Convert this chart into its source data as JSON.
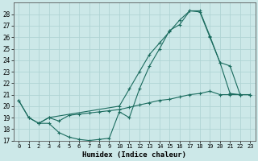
{
  "title": "",
  "xlabel": "Humidex (Indice chaleur)",
  "xlim": [
    -0.5,
    23.5
  ],
  "ylim": [
    17,
    29
  ],
  "yticks": [
    17,
    18,
    19,
    20,
    21,
    22,
    23,
    24,
    25,
    26,
    27,
    28
  ],
  "xticks": [
    0,
    1,
    2,
    3,
    4,
    5,
    6,
    7,
    8,
    9,
    10,
    11,
    12,
    13,
    14,
    15,
    16,
    17,
    18,
    19,
    20,
    21,
    22,
    23
  ],
  "bg_color": "#cce8e8",
  "line_color": "#1a6b5e",
  "grid_color": "#b0d4d4",
  "line1_x": [
    0,
    1,
    2,
    3,
    4,
    5,
    6,
    7,
    8,
    9,
    10,
    11,
    12,
    13,
    14,
    15,
    16,
    17,
    18,
    19,
    20,
    21,
    22,
    23
  ],
  "line1_y": [
    20.5,
    19.0,
    18.5,
    18.5,
    17.7,
    17.3,
    17.1,
    17.0,
    17.1,
    17.2,
    19.5,
    19.0,
    21.5,
    23.5,
    25.0,
    26.6,
    27.1,
    28.3,
    28.3,
    26.1,
    23.8,
    21.1,
    21.0,
    21.0
  ],
  "line2_x": [
    0,
    1,
    2,
    3,
    4,
    5,
    6,
    7,
    8,
    9,
    10,
    11,
    12,
    13,
    14,
    15,
    16,
    17,
    18,
    19,
    20,
    21,
    22,
    23
  ],
  "line2_y": [
    20.5,
    19.0,
    18.5,
    19.0,
    18.7,
    19.2,
    19.3,
    19.4,
    19.5,
    19.6,
    19.7,
    19.9,
    20.1,
    20.3,
    20.5,
    20.6,
    20.8,
    21.0,
    21.1,
    21.3,
    21.0,
    21.0,
    21.0,
    21.0
  ],
  "line3_x": [
    2,
    3,
    10,
    11,
    12,
    13,
    14,
    15,
    16,
    17,
    18,
    19,
    20,
    21,
    22,
    23
  ],
  "line3_y": [
    18.5,
    19.0,
    20.0,
    21.5,
    23.0,
    24.5,
    25.5,
    26.5,
    27.5,
    28.3,
    28.2,
    26.0,
    23.8,
    23.5,
    21.0,
    21.0
  ]
}
